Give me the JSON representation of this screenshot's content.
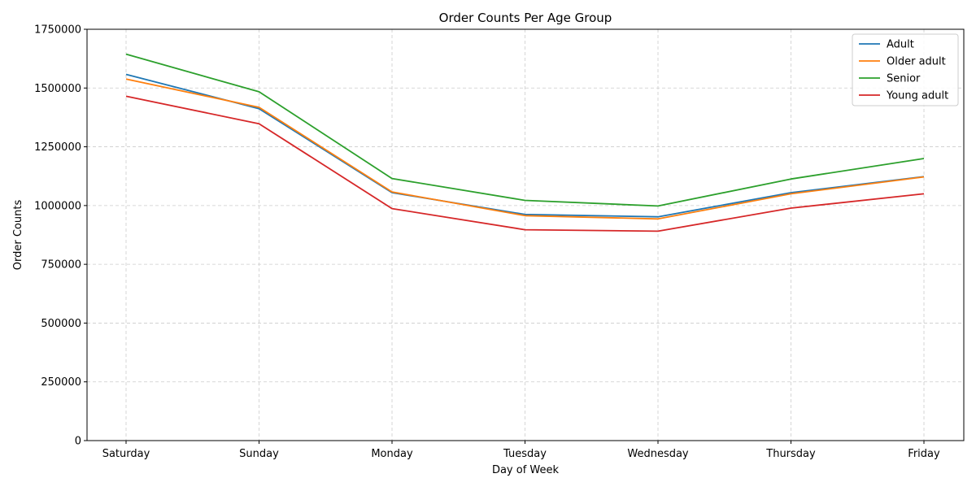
{
  "chart_data": {
    "type": "line",
    "title": "Order Counts Per Age Group",
    "xlabel": "Day of Week",
    "ylabel": "Order Counts",
    "categories": [
      "Saturday",
      "Sunday",
      "Monday",
      "Tuesday",
      "Wednesday",
      "Thursday",
      "Friday"
    ],
    "ylim": [
      0,
      1750000
    ],
    "yticks": [
      0,
      250000,
      500000,
      750000,
      1000000,
      1250000,
      1500000,
      1750000
    ],
    "grid": true,
    "legend_position": "top-right",
    "series": [
      {
        "name": "Adult",
        "color": "#1f77b4",
        "values": [
          1558000,
          1412000,
          1055000,
          962000,
          952000,
          1055000,
          1123000
        ]
      },
      {
        "name": "Older adult",
        "color": "#ff7f0e",
        "values": [
          1538000,
          1418000,
          1058000,
          957000,
          943000,
          1050000,
          1122000
        ]
      },
      {
        "name": "Senior",
        "color": "#2ca02c",
        "values": [
          1644000,
          1484000,
          1115000,
          1022000,
          998000,
          1113000,
          1200000
        ]
      },
      {
        "name": "Young adult",
        "color": "#d62728",
        "values": [
          1465000,
          1348000,
          987000,
          897000,
          891000,
          989000,
          1050000
        ]
      }
    ]
  }
}
